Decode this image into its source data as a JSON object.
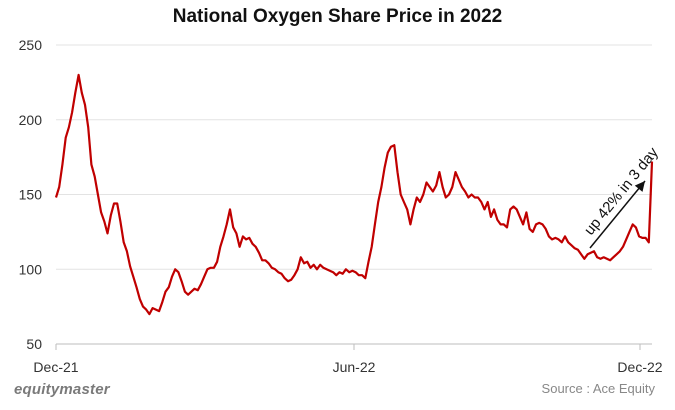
{
  "chart_data": {
    "type": "line",
    "title": "National Oxygen Share Price in 2022",
    "xlabel": "",
    "ylabel": "",
    "ylim": [
      50,
      250
    ],
    "yticks": [
      50,
      100,
      150,
      200,
      250
    ],
    "xticks": [
      "Dec-21",
      "Jun-22",
      "Dec-22"
    ],
    "grid": "horizontal",
    "color": "#c00000",
    "annotation": "up 42% in 3 day",
    "series": [
      {
        "values": [
          148,
          155,
          170,
          188,
          195,
          205,
          218,
          230,
          218,
          210,
          195,
          170,
          162,
          150,
          138,
          132,
          124,
          136,
          144,
          144,
          132,
          118,
          112,
          102,
          95,
          88,
          80,
          75,
          73,
          70,
          74,
          73,
          72,
          78,
          85,
          88,
          95,
          100,
          98,
          92,
          85,
          83,
          85,
          87,
          86,
          90,
          95,
          100,
          101,
          101,
          105,
          115,
          122,
          130,
          140,
          128,
          124,
          115,
          122,
          120,
          121,
          117,
          115,
          111,
          106,
          106,
          104,
          101,
          100,
          98,
          97,
          94,
          92,
          93,
          96,
          100,
          108,
          104,
          105,
          101,
          103,
          100,
          103,
          101,
          100,
          99,
          98,
          96,
          98,
          97,
          100,
          98,
          99,
          98,
          96,
          96,
          94,
          105,
          115,
          130,
          145,
          155,
          168,
          178,
          182,
          183,
          165,
          150,
          145,
          140,
          130,
          140,
          148,
          145,
          150,
          158,
          155,
          152,
          156,
          165,
          155,
          148,
          150,
          155,
          165,
          160,
          155,
          152,
          148,
          150,
          148,
          148,
          145,
          140,
          145,
          135,
          140,
          133,
          130,
          130,
          128,
          140,
          142,
          140,
          135,
          130,
          138,
          127,
          125,
          130,
          131,
          130,
          127,
          122,
          120,
          121,
          120,
          118,
          122,
          118,
          116,
          114,
          113,
          110,
          107,
          110,
          111,
          112,
          108,
          107,
          108,
          107,
          106,
          108,
          110,
          112,
          115,
          120,
          125,
          130,
          128,
          122,
          121,
          121,
          118,
          172
        ]
      }
    ]
  },
  "footer": {
    "brand": "equitymaster",
    "source": "Source : Ace Equity"
  }
}
